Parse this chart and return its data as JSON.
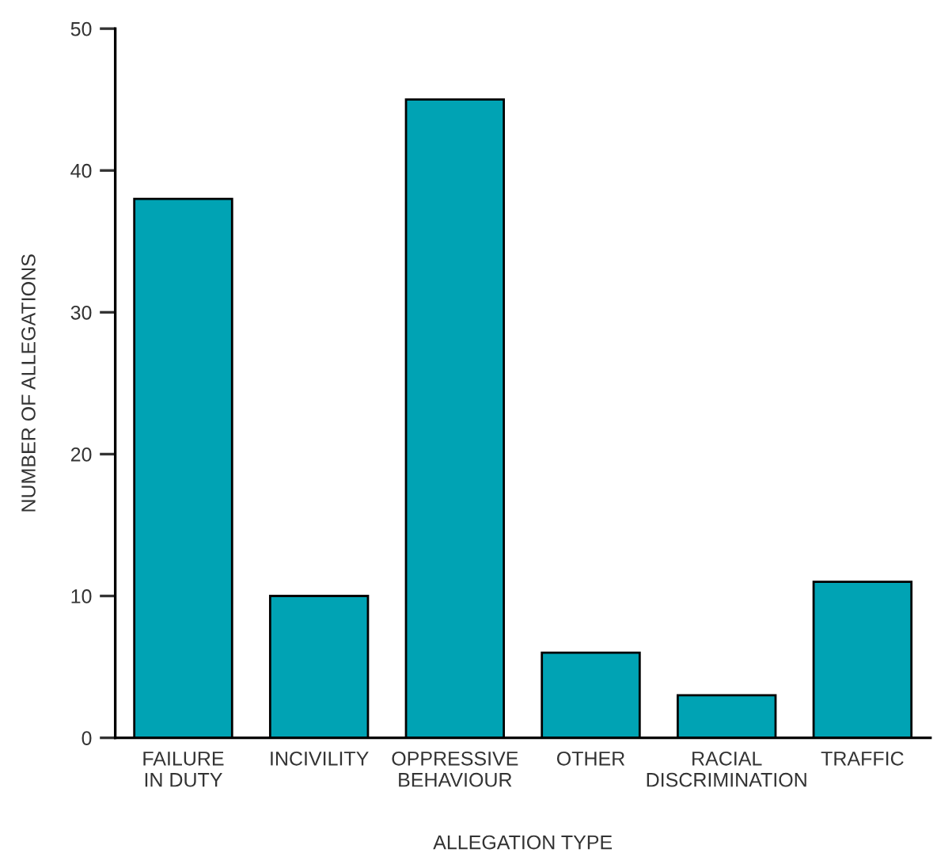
{
  "chart_data": {
    "type": "bar",
    "xlabel": "ALLEGATION TYPE",
    "ylabel": "NUMBER OF ALLEGATIONS",
    "categories": [
      "FAILURE\nIN DUTY",
      "INCIVILITY",
      "OPPRESSIVE\nBEHAVIOUR",
      "OTHER",
      "RACIAL\nDISCRIMINATION",
      "TRAFFIC"
    ],
    "values": [
      38,
      10,
      45,
      6,
      3,
      11
    ],
    "color": "#00a3b4",
    "ylim": [
      0,
      50
    ],
    "yticks": [
      0,
      10,
      20,
      30,
      40,
      50
    ],
    "grid": false
  }
}
